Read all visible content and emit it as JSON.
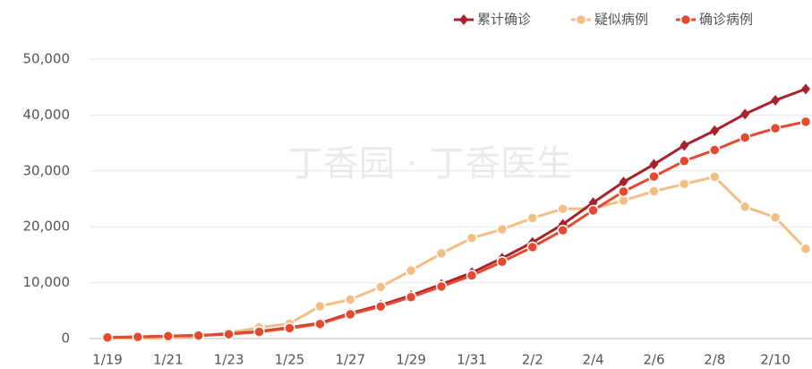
{
  "chart_data": {
    "type": "line",
    "watermark": "丁香园 · 丁香医生",
    "categories": [
      "1/19",
      null,
      "1/21",
      null,
      "1/23",
      null,
      "1/25",
      null,
      "1/27",
      null,
      "1/29",
      null,
      "1/31",
      null,
      "2/2",
      null,
      "2/4",
      null,
      "2/6",
      null,
      "2/8",
      null,
      "2/10",
      null
    ],
    "series": [
      {
        "name": "累计确诊",
        "color": "#a8222c",
        "marker": "diamond",
        "values": [
          198,
          291,
          440,
          571,
          830,
          1287,
          1975,
          2744,
          4515,
          5974,
          7711,
          9692,
          11791,
          14380,
          17205,
          20438,
          24324,
          28018,
          31161,
          34546,
          37198,
          40171,
          42638,
          44653
        ]
      },
      {
        "name": "疑似病例",
        "color": "#f3be86",
        "marker": "circle",
        "values": [
          54,
          54,
          37,
          393,
          1072,
          1965,
          2684,
          5794,
          6973,
          9239,
          12167,
          15238,
          17988,
          19544,
          21558,
          23214,
          23260,
          24702,
          26359,
          27657,
          28942,
          23589,
          21675,
          16067
        ]
      },
      {
        "name": "确诊病例",
        "color": "#e5492f",
        "marker": "circle",
        "values": [
          198,
          291,
          431,
          540,
          771,
          1208,
          1870,
          2613,
          4349,
          5739,
          7417,
          9308,
          11289,
          13748,
          16369,
          19381,
          22942,
          26302,
          28985,
          31774,
          33738,
          35982,
          37626,
          38800
        ]
      }
    ],
    "ylim": [
      0,
      50000
    ],
    "yticks": [
      0,
      {
        "value": 10000,
        "label": "10,000"
      },
      {
        "value": 20000,
        "label": "20,000"
      },
      {
        "value": 30000,
        "label": "30,000"
      },
      {
        "value": 40000,
        "label": "40,000"
      },
      {
        "value": 50000,
        "label": "50,000"
      }
    ],
    "grid": true,
    "legend": "top-right"
  }
}
